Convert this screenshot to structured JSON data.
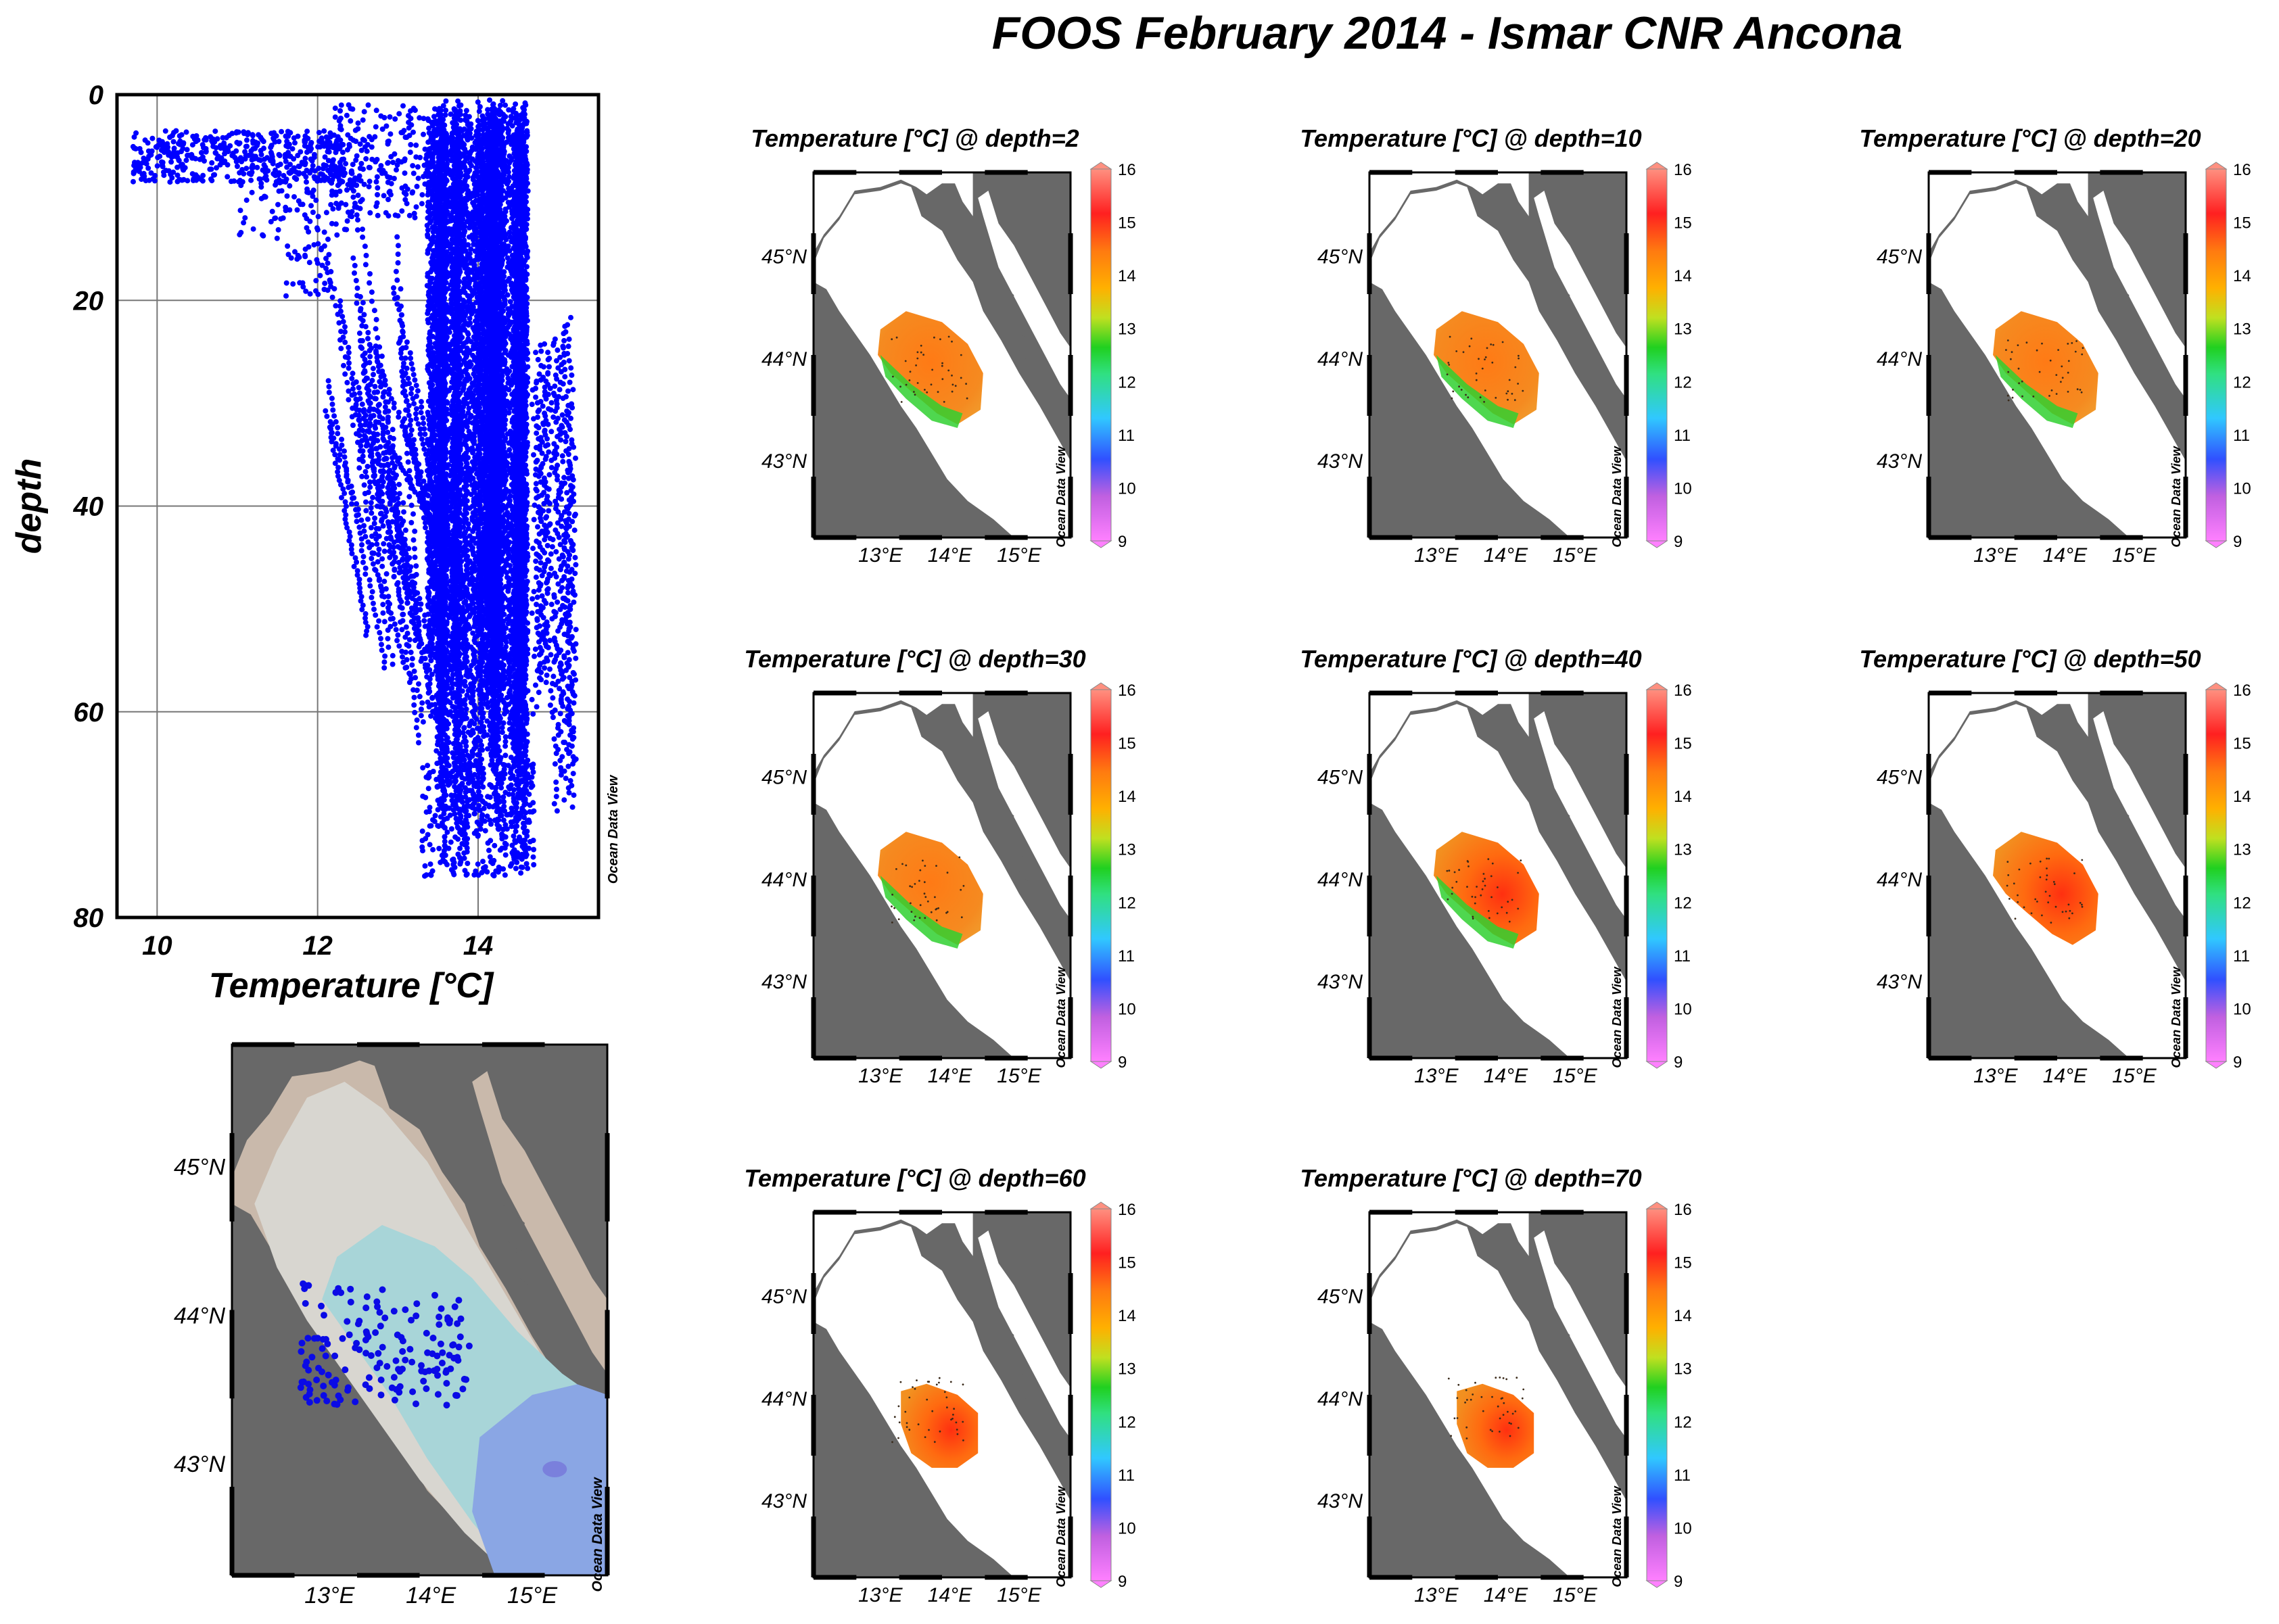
{
  "page": {
    "title": "FOOS February 2014 - Ismar CNR Ancona",
    "watermark": "Ocean Data View"
  },
  "colors": {
    "land": "#686868",
    "sea": "#ffffff",
    "points": "#0000ff",
    "station": "#0a0ae6",
    "shelf_shallow": "#c9b9ab",
    "shelf_mid": "#d8d6d0",
    "basin": "#a8d5d8",
    "deep": "#8aa6e4",
    "deepest": "#7a80dc"
  },
  "maps": {
    "lat_labels": [
      "45°N",
      "44°N",
      "43°N"
    ],
    "lon_labels": [
      "13°E",
      "14°E",
      "15°E"
    ],
    "colorbar_ticks": [
      "16",
      "15",
      "14",
      "13",
      "12",
      "11",
      "10",
      "9"
    ]
  },
  "chart_data": [
    {
      "type": "scatter",
      "title": "",
      "xlabel": "Temperature [°C]",
      "ylabel": "depth",
      "xlim": [
        9.5,
        15.5
      ],
      "ylim": [
        80,
        0
      ],
      "xticks": [
        "10",
        "12",
        "14"
      ],
      "yticks": [
        "0",
        "20",
        "40",
        "60",
        "80"
      ],
      "grid": true,
      "legend": "none",
      "description_of_cloud": {
        "surface_cold_layer": {
          "x_range": [
            9.7,
            12.3
          ],
          "y_range": [
            2,
            20
          ]
        },
        "main_band": {
          "x_range": [
            13.4,
            14.6
          ],
          "y_range": [
            0,
            76
          ]
        },
        "warm_edge": {
          "x_range": [
            14.4,
            15.2
          ],
          "y_range": [
            20,
            72
          ]
        },
        "cold_tail": {
          "x_range": [
            12.0,
            13.4
          ],
          "y_range": [
            15,
            65
          ]
        }
      },
      "series": [
        {
          "x": [
            9.7,
            10.0,
            10.3,
            10.6,
            11.0,
            11.4,
            11.8,
            12.2,
            12.6,
            13.0,
            13.4,
            13.8,
            14.2,
            14.6,
            15.0
          ],
          "y": [
            5,
            6,
            6,
            5,
            5,
            6,
            7,
            8,
            10,
            12,
            3,
            2,
            2,
            20,
            40
          ]
        }
      ]
    },
    {
      "type": "heatmap",
      "title": "Temperature [°C] @ depth=2",
      "colorbar": {
        "min": 9,
        "max": 16
      },
      "field": {
        "mean": 13.8,
        "min": 12.0,
        "max": 14.4,
        "cold_coastal_band": 12.0
      }
    },
    {
      "type": "heatmap",
      "title": "Temperature [°C] @ depth=10",
      "colorbar": {
        "min": 9,
        "max": 16
      },
      "field": {
        "mean": 13.9,
        "min": 12.0,
        "max": 14.3,
        "cold_coastal_band": 12.0
      }
    },
    {
      "type": "heatmap",
      "title": "Temperature [°C] @ depth=20",
      "colorbar": {
        "min": 9,
        "max": 16
      },
      "field": {
        "mean": 14.0,
        "min": 12.2,
        "max": 14.4,
        "cold_coastal_band": 12.2
      }
    },
    {
      "type": "heatmap",
      "title": "Temperature [°C] @ depth=30",
      "colorbar": {
        "min": 9,
        "max": 16
      },
      "field": {
        "mean": 14.2,
        "min": 12.3,
        "max": 14.9,
        "cold_coastal_band": 12.3
      }
    },
    {
      "type": "heatmap",
      "title": "Temperature [°C] @ depth=40",
      "colorbar": {
        "min": 9,
        "max": 16
      },
      "field": {
        "mean": 14.3,
        "min": 12.6,
        "max": 15.0,
        "cold_coastal_band": 12.6
      }
    },
    {
      "type": "heatmap",
      "title": "Temperature [°C] @ depth=50",
      "colorbar": {
        "min": 9,
        "max": 16
      },
      "field": {
        "mean": 14.4,
        "min": 13.8,
        "max": 15.1,
        "cold_coastal_band": 13.8
      }
    },
    {
      "type": "heatmap",
      "title": "Temperature [°C] @ depth=60",
      "colorbar": {
        "min": 9,
        "max": 16
      },
      "field": {
        "mean": 14.5,
        "min": 14.0,
        "max": 15.2,
        "cold_coastal_band": 14.0
      }
    },
    {
      "type": "heatmap",
      "title": "Temperature [°C] @ depth=70",
      "colorbar": {
        "min": 9,
        "max": 16
      },
      "field": {
        "mean": 14.5,
        "min": 14.1,
        "max": 15.1,
        "cold_coastal_band": 14.1
      }
    }
  ]
}
